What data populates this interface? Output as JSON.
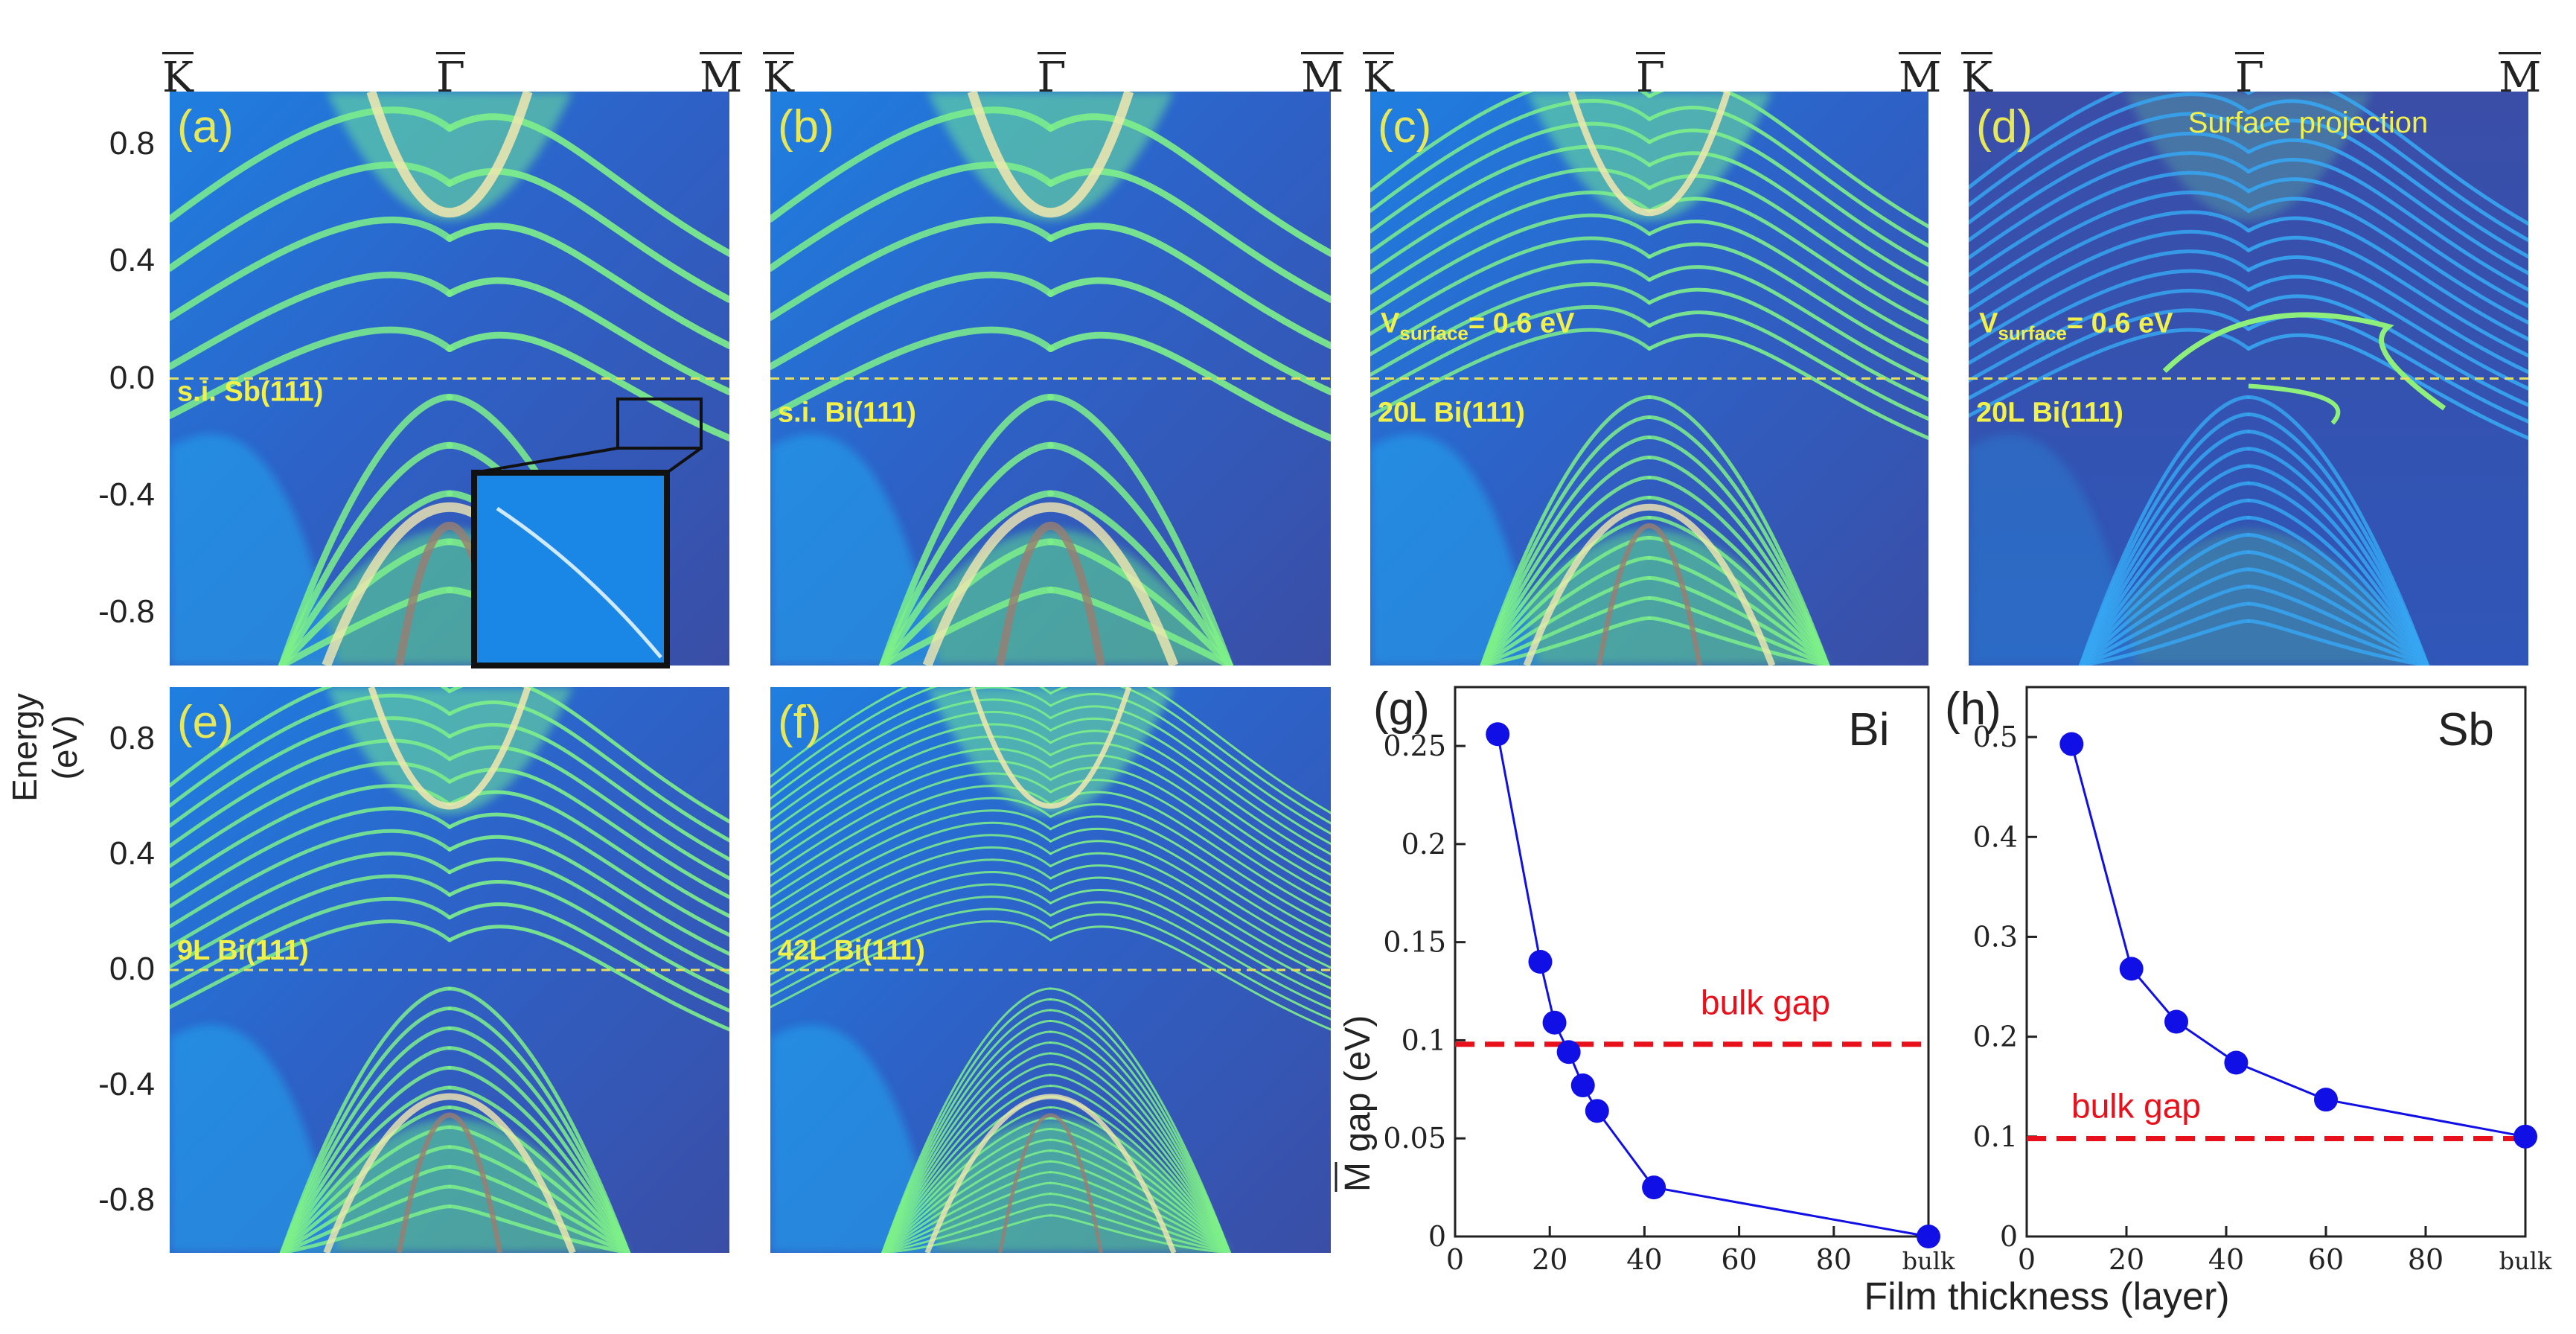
{
  "figure": {
    "energy_axis_label": "Energy (eV)",
    "energy_ticks": [
      "0.8",
      "0.4",
      "0.0",
      "-0.4",
      "-0.8"
    ],
    "kpoints": [
      "K",
      "Γ",
      "M"
    ]
  },
  "panels": [
    {
      "id": "a",
      "tag": "(a)",
      "label": "s.i. Sb(111)",
      "style": "si",
      "inset": true
    },
    {
      "id": "b",
      "tag": "(b)",
      "label": "s.i. Bi(111)",
      "style": "si"
    },
    {
      "id": "c",
      "tag": "(c)",
      "label": "20L Bi(111)",
      "potential": "V",
      "potential_sub": "surface",
      "potential_val": "= 0.6 eV",
      "style": "film"
    },
    {
      "id": "d",
      "tag": "(d)",
      "label": "20L Bi(111)",
      "potential": "V",
      "potential_sub": "surface",
      "potential_val": "= 0.6 eV",
      "extra": "Surface projection",
      "style": "proj"
    },
    {
      "id": "e",
      "tag": "(e)",
      "label": "9L Bi(111)",
      "style": "film"
    },
    {
      "id": "f",
      "tag": "(f)",
      "label": "42L Bi(111)",
      "style": "dense"
    }
  ],
  "chart_data": [
    {
      "type": "line",
      "tag": "(g)",
      "element": "Bi",
      "x": [
        9,
        18,
        21,
        24,
        27,
        30,
        42,
        "bulk"
      ],
      "y": [
        0.256,
        0.14,
        0.109,
        0.094,
        0.077,
        0.064,
        0.025,
        0.0
      ],
      "xlim": [
        0,
        100
      ],
      "ylim": [
        0,
        0.28
      ],
      "xticks": [
        "0",
        "20",
        "40",
        "60",
        "80",
        "bulk"
      ],
      "yticks": [
        "0",
        "0.05",
        "0.1",
        "0.15",
        "0.2",
        "0.25"
      ],
      "ylabel": "M gap (eV)",
      "ylabel_bar_letter": "M",
      "ylabel_rest": " gap (eV)",
      "reference_line": {
        "label": "bulk gap",
        "y": 0.098,
        "color": "#e8101b"
      },
      "marker_color": "#1010e6"
    },
    {
      "type": "line",
      "tag": "(h)",
      "element": "Sb",
      "x": [
        9,
        21,
        30,
        42,
        60,
        "bulk"
      ],
      "y": [
        0.493,
        0.268,
        0.215,
        0.174,
        0.137,
        0.1
      ],
      "xlim": [
        0,
        100
      ],
      "ylim": [
        0,
        0.55
      ],
      "xticks": [
        "0",
        "20",
        "40",
        "60",
        "80",
        "bulk"
      ],
      "yticks": [
        "0",
        "0.1",
        "0.2",
        "0.3",
        "0.4",
        "0.5"
      ],
      "reference_line": {
        "label": "bulk gap",
        "y": 0.098,
        "color": "#e8101b"
      },
      "marker_color": "#1010e6"
    }
  ],
  "x_axis_label": "Film thickness (layer)",
  "colors": {
    "tag": "#e6e85a",
    "label": "#f2f04a",
    "fermi": "#e6e060",
    "bg_deep": "#3b4fa8",
    "bg_mid": "#1a8fe6",
    "band": "#7ef08a",
    "band_hot": "#f2e8b0"
  }
}
